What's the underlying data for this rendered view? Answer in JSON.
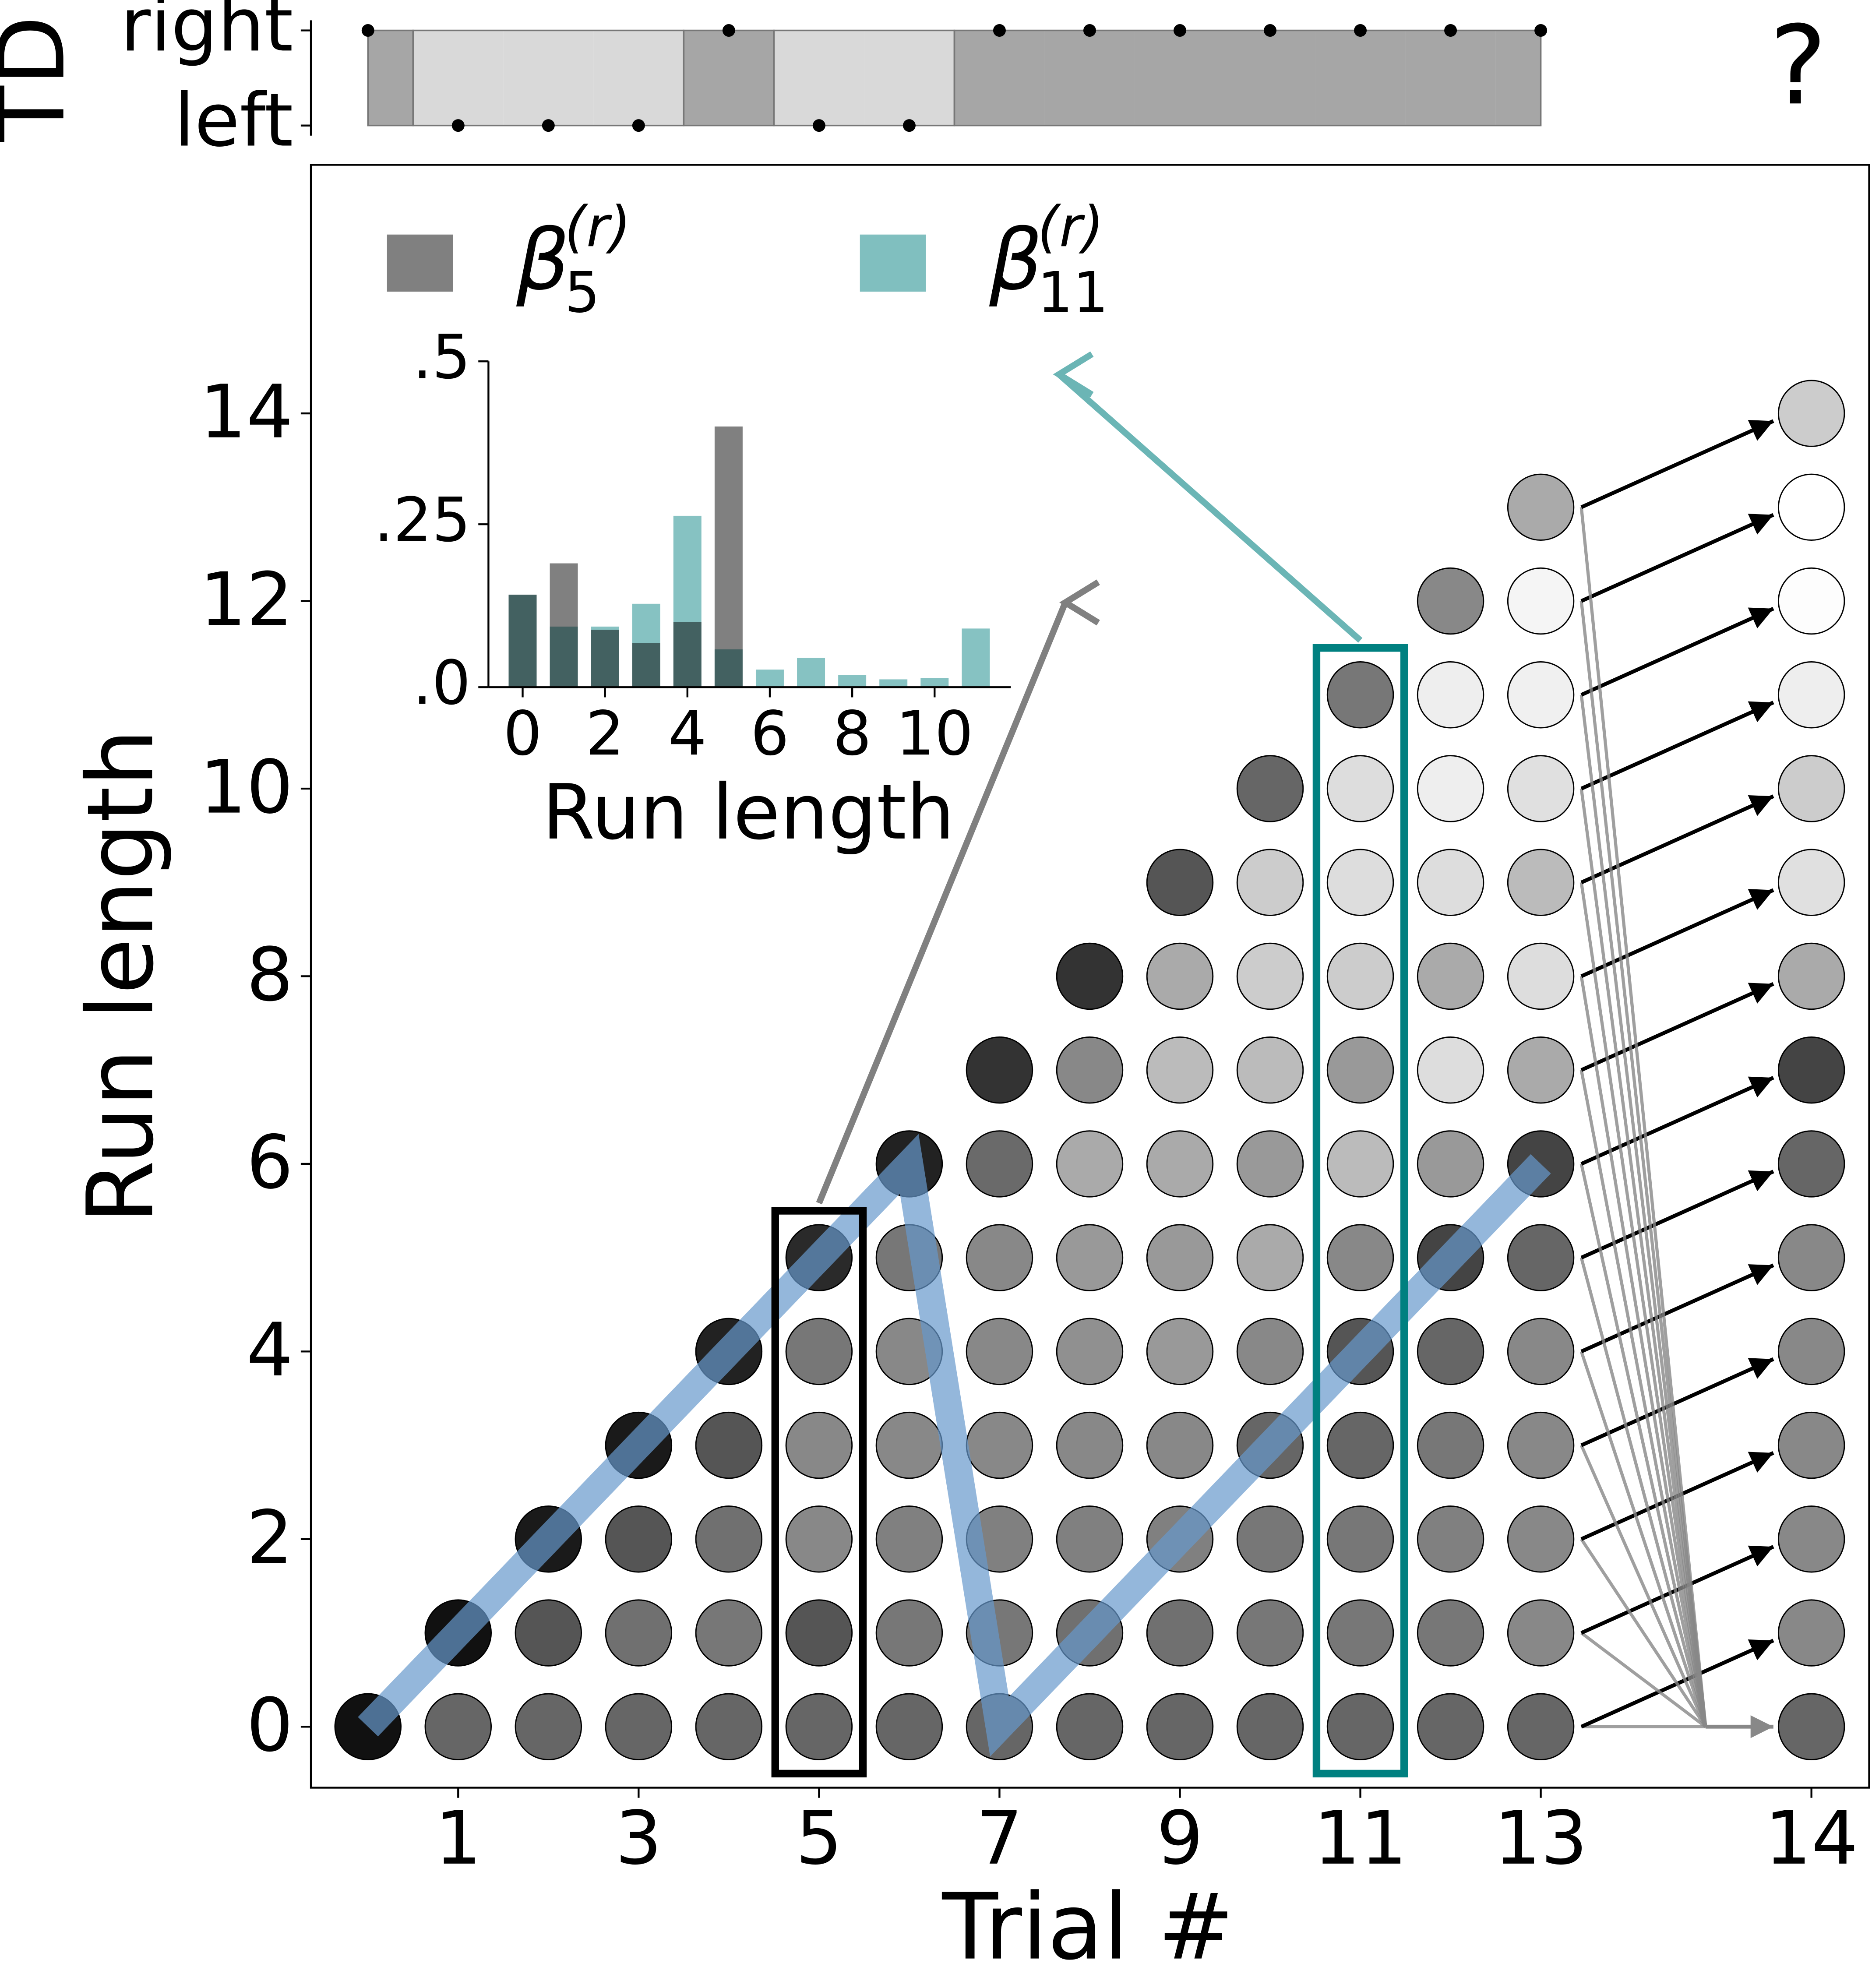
{
  "chart_data": {
    "type": "run_length_lattice",
    "xlabel": "Trial #",
    "ylabel": "Run length",
    "xlim": [
      -0.632,
      16.64
    ],
    "ylim": [
      -0.65,
      16.65
    ],
    "xticks": [
      1,
      3,
      5,
      7,
      9,
      11,
      13,
      14
    ],
    "yticks": [
      0,
      2,
      4,
      6,
      8,
      10,
      12,
      14
    ],
    "columns": [
      {
        "trial": 0,
        "gray": [
          17
        ]
      },
      {
        "trial": 1,
        "gray": [
          102,
          17
        ]
      },
      {
        "trial": 2,
        "gray": [
          102,
          85,
          26
        ]
      },
      {
        "trial": 3,
        "gray": [
          102,
          112,
          85,
          26
        ]
      },
      {
        "trial": 4,
        "gray": [
          102,
          119,
          112,
          85,
          34
        ]
      },
      {
        "trial": 5,
        "gray": [
          102,
          85,
          136,
          136,
          119,
          42
        ]
      },
      {
        "trial": 6,
        "gray": [
          102,
          119,
          128,
          136,
          136,
          119,
          34
        ]
      },
      {
        "trial": 7,
        "gray": [
          102,
          119,
          128,
          136,
          136,
          136,
          106,
          51
        ]
      },
      {
        "trial": 8,
        "gray": [
          102,
          112,
          128,
          136,
          144,
          153,
          170,
          136,
          51
        ]
      },
      {
        "trial": 9,
        "gray": [
          102,
          112,
          128,
          136,
          153,
          153,
          170,
          187,
          170,
          85
        ]
      },
      {
        "trial": 10,
        "gray": [
          102,
          119,
          119,
          102,
          136,
          170,
          153,
          187,
          204,
          204,
          102
        ]
      },
      {
        "trial": 11,
        "gray": [
          102,
          119,
          119,
          102,
          85,
          136,
          187,
          153,
          204,
          221,
          221,
          119
        ]
      },
      {
        "trial": 12,
        "gray": [
          102,
          119,
          128,
          119,
          102,
          68,
          153,
          221,
          170,
          221,
          238,
          238,
          136
        ]
      },
      {
        "trial": 13,
        "gray": [
          102,
          136,
          136,
          136,
          136,
          102,
          68,
          170,
          221,
          187,
          224,
          240,
          245,
          170
        ]
      },
      {
        "trial": 14,
        "gray": [
          102,
          136,
          136,
          136,
          136,
          136,
          102,
          68,
          170,
          224,
          204,
          238,
          253,
          255,
          204
        ]
      }
    ],
    "true_run_length": {
      "x": [
        0,
        6,
        7,
        13
      ],
      "values": [
        0,
        6,
        0,
        6
      ],
      "color": "#6699cc"
    },
    "highlights": [
      {
        "trial": 5,
        "color": "#000000"
      },
      {
        "trial": 11,
        "color": "#008080"
      }
    ],
    "inset": {
      "type": "bar",
      "xlabel": "Run length",
      "xlim": [
        -0.83,
        11.85
      ],
      "ylim": [
        0,
        0.5
      ],
      "xticks": [
        0,
        2,
        4,
        6,
        8,
        10
      ],
      "yticks": [
        {
          "value": 0,
          "label": ".0"
        },
        {
          "value": 0.25,
          "label": ".25"
        },
        {
          "value": 0.5,
          "label": ".5"
        }
      ],
      "series": [
        {
          "name": "β",
          "name_sub": "5",
          "name_sup": "(r)",
          "color": "#808080",
          "x": [
            0,
            1,
            2,
            3,
            4,
            5
          ],
          "values": [
            0.142,
            0.19,
            0.088,
            0.068,
            0.1,
            0.4
          ]
        },
        {
          "name": "β",
          "name_sub": "11",
          "name_sup": "(r)",
          "color": "#80bfbf",
          "x": [
            0,
            1,
            2,
            3,
            4,
            5,
            6,
            7,
            8,
            9,
            10,
            11
          ],
          "values": [
            0.142,
            0.093,
            0.093,
            0.128,
            0.263,
            0.058,
            0.027,
            0.045,
            0.019,
            0.012,
            0.014,
            0.09
          ]
        }
      ]
    },
    "td": {
      "ylabel": "TD",
      "yticks": [
        "right",
        "left"
      ],
      "choices": [
        "right",
        "left",
        "left",
        "left",
        "right",
        "left",
        "left",
        "right",
        "right",
        "right",
        "right",
        "right",
        "right",
        "right"
      ],
      "colors": {
        "right": "#a6a6a6",
        "left": "#d9d9d9"
      },
      "unknown": "?"
    }
  }
}
